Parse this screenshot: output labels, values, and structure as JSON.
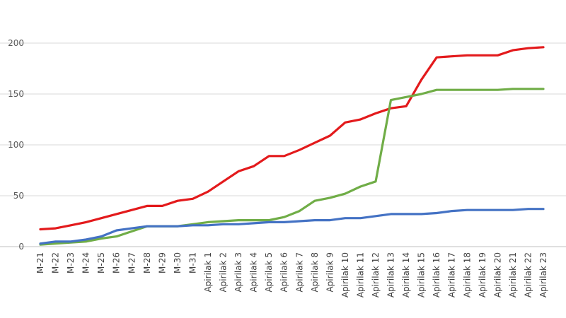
{
  "chart_data": {
    "type": "line",
    "categories": [
      "M-21",
      "M-22",
      "M-23",
      "M-24",
      "M-25",
      "M-26",
      "M-27",
      "M-28",
      "M-29",
      "M-30",
      "M-31",
      "Apirilak 1",
      "Apirilak 2",
      "Apirilak 3",
      "Apirilak 4",
      "Apirilak 5",
      "Apirilak 6",
      "Apirilak 7",
      "Apirilak 8",
      "Apirilak 9",
      "Apirilak 10",
      "Apirilak 11",
      "Apirilak 12",
      "Apirilak 13",
      "Apirilak 14",
      "Apirilak 15",
      "Apirilak 16",
      "Apirilak 17",
      "Apirilak 18",
      "Apirilak 19",
      "Apirilak 20",
      "Apirilak 21",
      "Apirilak 22",
      "Apirilak 23"
    ],
    "series": [
      {
        "color": "#e31a1c",
        "values": [
          17,
          18,
          21,
          24,
          28,
          32,
          36,
          40,
          40,
          45,
          47,
          54,
          64,
          74,
          79,
          89,
          89,
          95,
          102,
          109,
          122,
          125,
          131,
          136,
          138,
          164,
          186,
          187,
          188,
          188,
          188,
          193,
          195,
          196
        ]
      },
      {
        "color": "#70ad47",
        "values": [
          2,
          3,
          4,
          5,
          8,
          10,
          15,
          20,
          20,
          20,
          22,
          24,
          25,
          26,
          26,
          26,
          29,
          35,
          45,
          48,
          52,
          59,
          64,
          144,
          147,
          150,
          154,
          154,
          154,
          154,
          154,
          155,
          155,
          155
        ]
      },
      {
        "color": "#4472c4",
        "values": [
          3,
          5,
          5,
          7,
          10,
          16,
          18,
          20,
          20,
          20,
          21,
          21,
          22,
          22,
          23,
          24,
          24,
          25,
          26,
          26,
          28,
          28,
          30,
          32,
          32,
          32,
          33,
          35,
          36,
          36,
          36,
          36,
          37,
          37
        ]
      }
    ],
    "title": "",
    "xlabel": "",
    "ylabel": "",
    "ylim": [
      0,
      200
    ],
    "yticks": [
      "0",
      "50",
      "100",
      "150",
      "200"
    ],
    "grid": true,
    "legend": false
  }
}
